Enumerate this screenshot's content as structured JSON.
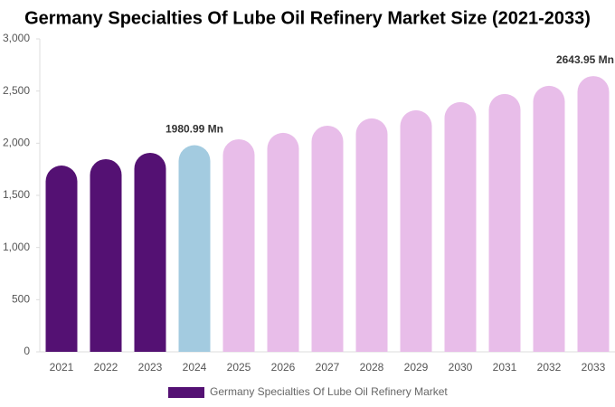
{
  "chart_data": {
    "type": "bar",
    "title": "Germany Specialties Of Lube Oil Refinery Market Size (2021-2033)",
    "categories": [
      "2021",
      "2022",
      "2023",
      "2024",
      "2025",
      "2026",
      "2027",
      "2028",
      "2029",
      "2030",
      "2031",
      "2032",
      "2033"
    ],
    "series": [
      {
        "name": "Germany Specialties Of Lube Oil Refinery Market",
        "color": "#541173",
        "colors": [
          "#541173",
          "#541173",
          "#541173",
          "#a3cbe0",
          "#e8bde9",
          "#e8bde9",
          "#e8bde9",
          "#e8bde9",
          "#e8bde9",
          "#e8bde9",
          "#e8bde9",
          "#e8bde9",
          "#e8bde9"
        ],
        "values": [
          1786,
          1847,
          1908,
          1980.99,
          2038,
          2099,
          2168,
          2238,
          2316,
          2394,
          2472,
          2550,
          2643.95
        ],
        "value_labels": [
          null,
          null,
          null,
          "1980.99 Mn",
          null,
          null,
          null,
          null,
          null,
          null,
          null,
          null,
          "2643.95 Mn"
        ]
      }
    ],
    "ylim": [
      0,
      3000
    ],
    "yticks": [
      0,
      500,
      {
        "value": 1000,
        "label": "1,000"
      },
      {
        "value": 1500,
        "label": "1,500"
      },
      {
        "value": 2000,
        "label": "2,000"
      },
      {
        "value": 2500,
        "label": "2,500"
      },
      {
        "value": 3000,
        "label": "3,000"
      }
    ],
    "grid": false,
    "legend": "bottom"
  }
}
